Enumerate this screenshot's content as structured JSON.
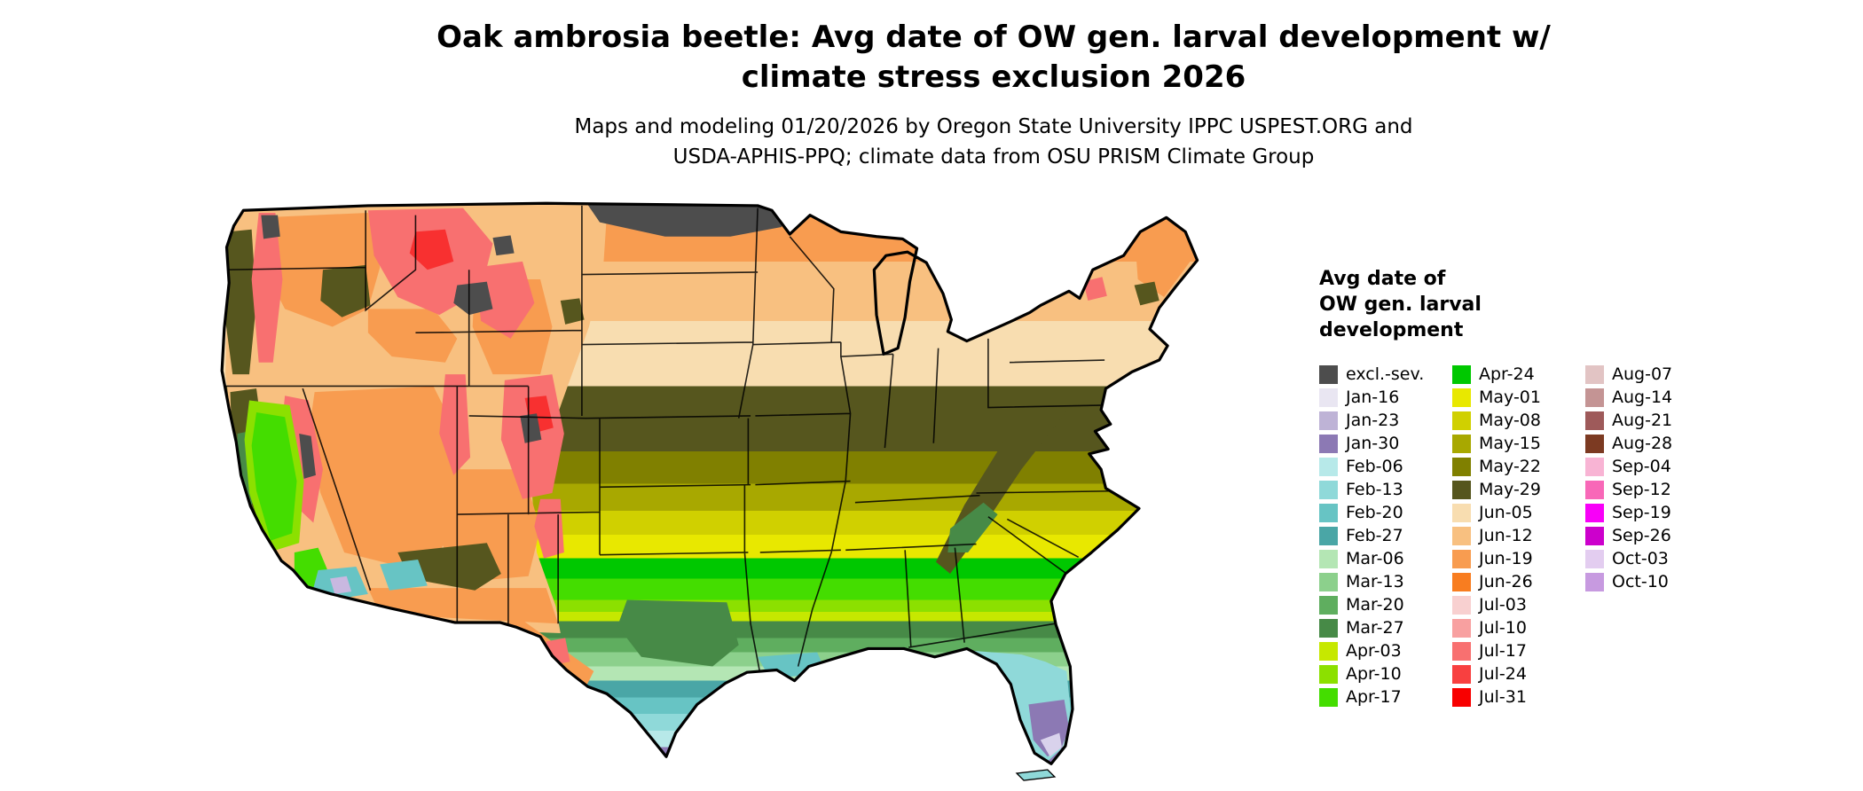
{
  "header": {
    "title_line1": "Oak ambrosia beetle: Avg date of OW gen. larval development w/",
    "title_line2": "climate stress exclusion 2026",
    "subtitle_line1": "Maps and modeling 01/20/2026 by Oregon State University IPPC USPEST.ORG and",
    "subtitle_line2": "USDA-APHIS-PPQ; climate data from OSU PRISM Climate Group"
  },
  "legend": {
    "title_lines": [
      "Avg date of",
      "OW gen. larval",
      "development"
    ],
    "columns": [
      {
        "entries": [
          {
            "label": "excl.-sev.",
            "color": "#4d4d4d"
          },
          {
            "label": "Jan-16",
            "color": "#e9e6f2"
          },
          {
            "label": "Jan-23",
            "color": "#beb3d6"
          },
          {
            "label": "Jan-30",
            "color": "#8c79b4"
          },
          {
            "label": "Feb-06",
            "color": "#b7e9e9"
          },
          {
            "label": "Feb-13",
            "color": "#8fd9d9"
          },
          {
            "label": "Feb-20",
            "color": "#67c4c4"
          },
          {
            "label": "Feb-27",
            "color": "#4aa6a6"
          },
          {
            "label": "Mar-06",
            "color": "#b4e6b4"
          },
          {
            "label": "Mar-13",
            "color": "#8cd08c"
          },
          {
            "label": "Mar-20",
            "color": "#5fae5f"
          },
          {
            "label": "Mar-27",
            "color": "#478a47"
          },
          {
            "label": "Apr-03",
            "color": "#c6e800"
          },
          {
            "label": "Apr-10",
            "color": "#8ce000"
          },
          {
            "label": "Apr-17",
            "color": "#44dd00"
          }
        ]
      },
      {
        "entries": [
          {
            "label": "Apr-24",
            "color": "#00c800"
          },
          {
            "label": "May-01",
            "color": "#e8e800"
          },
          {
            "label": "May-08",
            "color": "#d0d000"
          },
          {
            "label": "May-15",
            "color": "#a8a800"
          },
          {
            "label": "May-22",
            "color": "#808000"
          },
          {
            "label": "May-29",
            "color": "#56561e"
          },
          {
            "label": "Jun-05",
            "color": "#f8ddb0"
          },
          {
            "label": "Jun-12",
            "color": "#f8c080"
          },
          {
            "label": "Jun-19",
            "color": "#f89c50"
          },
          {
            "label": "Jun-26",
            "color": "#f87d20"
          },
          {
            "label": "Jul-03",
            "color": "#f8d0d0"
          },
          {
            "label": "Jul-10",
            "color": "#f8a0a0"
          },
          {
            "label": "Jul-17",
            "color": "#f87070"
          },
          {
            "label": "Jul-24",
            "color": "#f84040"
          },
          {
            "label": "Jul-31",
            "color": "#f80000"
          }
        ]
      },
      {
        "entries": [
          {
            "label": "Aug-07",
            "color": "#e2c4c4"
          },
          {
            "label": "Aug-14",
            "color": "#c49494"
          },
          {
            "label": "Aug-21",
            "color": "#9e5a5a"
          },
          {
            "label": "Aug-28",
            "color": "#7c3a22"
          },
          {
            "label": "Sep-04",
            "color": "#f8b4d4"
          },
          {
            "label": "Sep-12",
            "color": "#f868b8"
          },
          {
            "label": "Sep-19",
            "color": "#f800f8"
          },
          {
            "label": "Sep-26",
            "color": "#cc00cc"
          },
          {
            "label": "Oct-03",
            "color": "#e3cdf0"
          },
          {
            "label": "Oct-10",
            "color": "#c79ae0"
          }
        ]
      }
    ]
  }
}
